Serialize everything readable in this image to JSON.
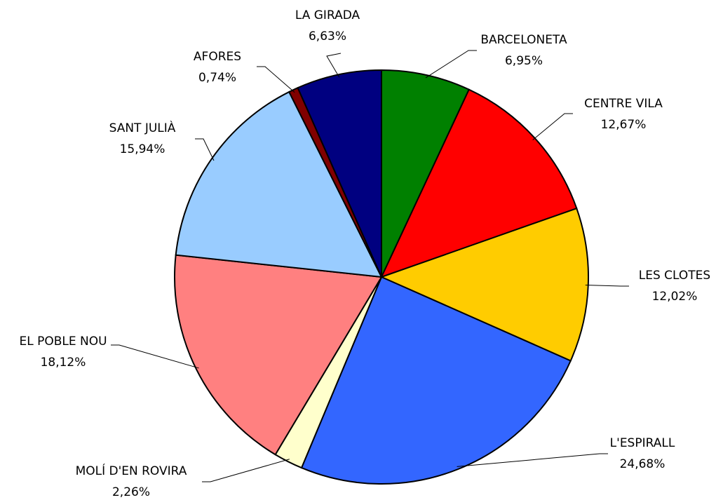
{
  "chart_data": {
    "type": "pie",
    "categories": [
      "BARCELONETA",
      "CENTRE VILA",
      "LES CLOTES",
      "L'ESPIRALL",
      "MOLÍ D'EN ROVIRA",
      "EL POBLE NOU",
      "SANT JULIÀ",
      "AFORES",
      "LA GIRADA"
    ],
    "values": [
      6.95,
      12.67,
      12.02,
      24.68,
      2.26,
      18.12,
      15.94,
      0.74,
      6.63
    ],
    "value_labels": [
      "6,95%",
      "12,67%",
      "12,02%",
      "24,68%",
      "2,26%",
      "18,12%",
      "15,94%",
      "0,74%",
      "6,63%"
    ],
    "colors": [
      "#008000",
      "#ff0000",
      "#ffcc00",
      "#3366ff",
      "#ffffcc",
      "#ff8080",
      "#99ccff",
      "#800000",
      "#000080"
    ]
  }
}
